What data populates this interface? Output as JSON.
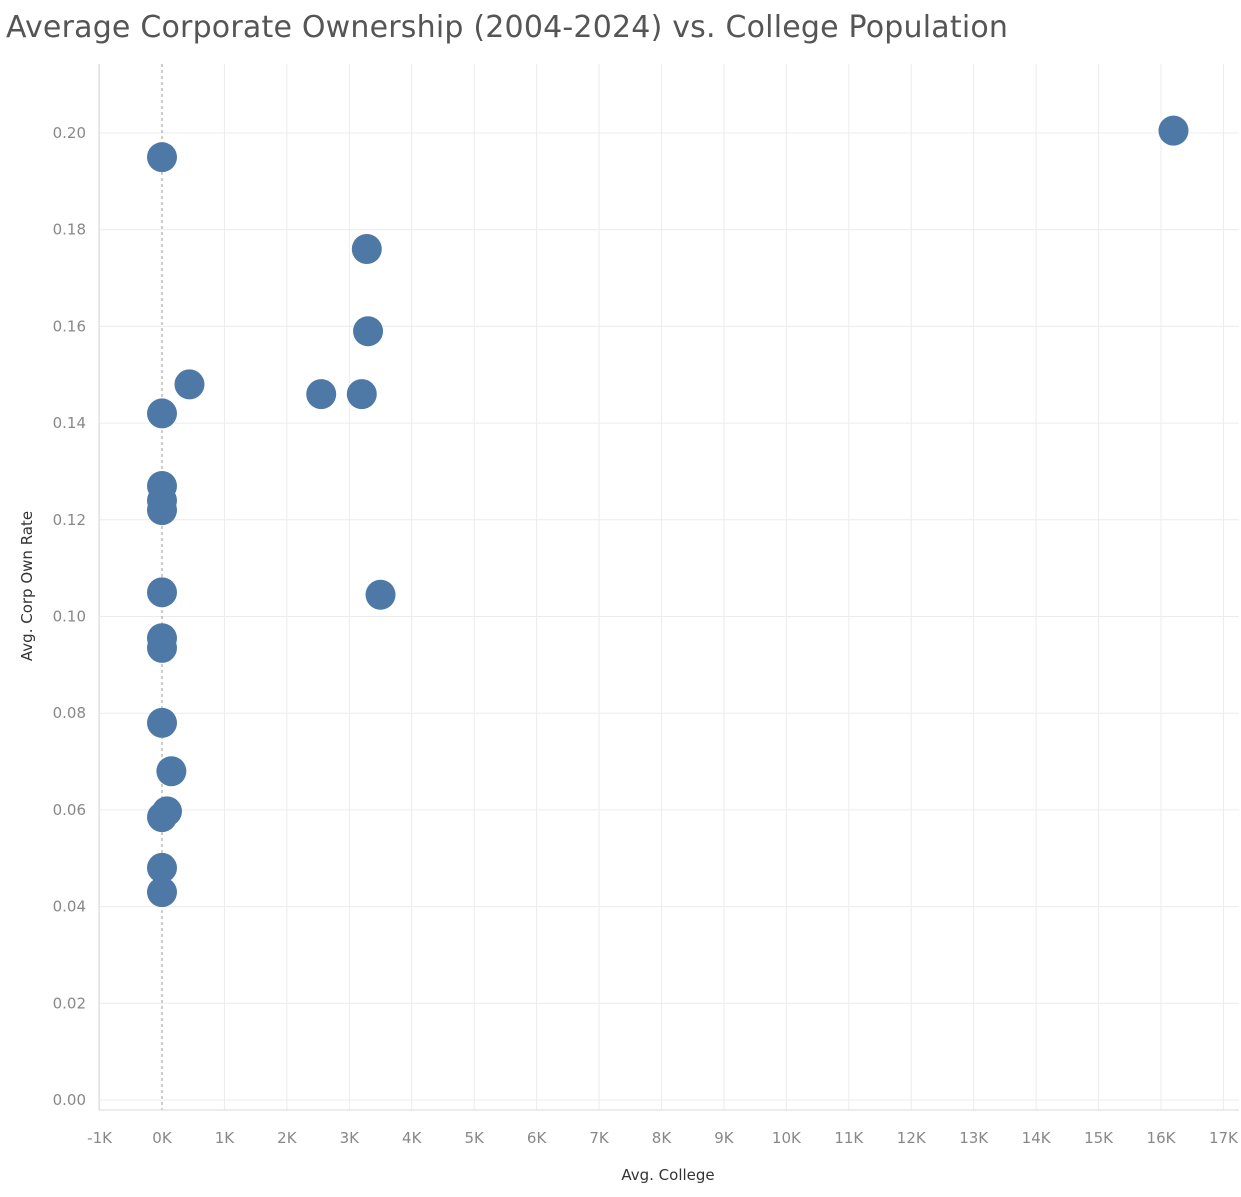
{
  "chart_data": {
    "type": "scatter",
    "title": "Average Corporate Ownership (2004-2024) vs. College Population",
    "xlabel": "Avg. College",
    "ylabel": "Avg. Corp Own Rate",
    "xlim": [
      -1000,
      17000
    ],
    "ylim": [
      0,
      0.21
    ],
    "grid": true,
    "x_ticks": [
      -1000,
      0,
      1000,
      2000,
      3000,
      4000,
      5000,
      6000,
      7000,
      8000,
      9000,
      10000,
      11000,
      12000,
      13000,
      14000,
      15000,
      16000,
      17000
    ],
    "x_tick_labels": [
      "-1K",
      "0K",
      "1K",
      "2K",
      "3K",
      "4K",
      "5K",
      "6K",
      "7K",
      "8K",
      "9K",
      "10K",
      "11K",
      "12K",
      "13K",
      "14K",
      "15K",
      "16K",
      "17K"
    ],
    "y_ticks": [
      0,
      0.02,
      0.04,
      0.06,
      0.08,
      0.1,
      0.12,
      0.14,
      0.16,
      0.18,
      0.2
    ],
    "y_tick_labels": [
      "0.00",
      "0.02",
      "0.04",
      "0.06",
      "0.08",
      "0.10",
      "0.12",
      "0.14",
      "0.16",
      "0.18",
      "0.20"
    ],
    "marker_color": "#4e79a7",
    "points": [
      {
        "x": 16200,
        "y": 0.2005
      },
      {
        "x": 0,
        "y": 0.195
      },
      {
        "x": 3280,
        "y": 0.176
      },
      {
        "x": 3300,
        "y": 0.159
      },
      {
        "x": 440,
        "y": 0.148
      },
      {
        "x": 2550,
        "y": 0.146
      },
      {
        "x": 3200,
        "y": 0.146
      },
      {
        "x": 0,
        "y": 0.142
      },
      {
        "x": 0,
        "y": 0.127
      },
      {
        "x": 0,
        "y": 0.124
      },
      {
        "x": 0,
        "y": 0.122
      },
      {
        "x": 0,
        "y": 0.105
      },
      {
        "x": 3500,
        "y": 0.1045
      },
      {
        "x": 0,
        "y": 0.0955
      },
      {
        "x": 0,
        "y": 0.0935
      },
      {
        "x": 0,
        "y": 0.078
      },
      {
        "x": 150,
        "y": 0.068
      },
      {
        "x": 80,
        "y": 0.0597
      },
      {
        "x": 0,
        "y": 0.0585
      },
      {
        "x": 0,
        "y": 0.048
      },
      {
        "x": 0,
        "y": 0.043
      }
    ]
  }
}
